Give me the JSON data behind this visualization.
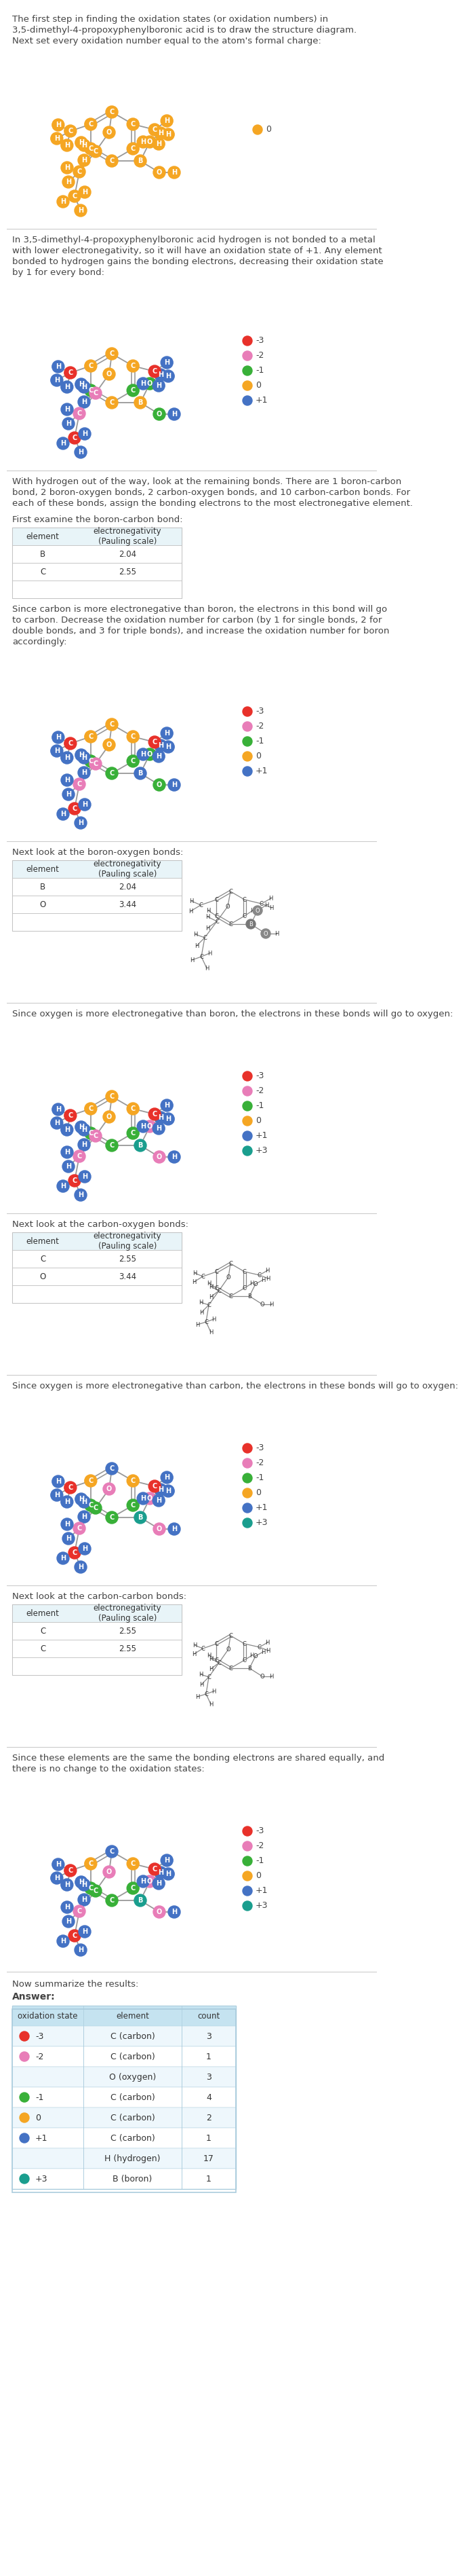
{
  "bg_color": "#ffffff",
  "text_color": "#444444",
  "bond_color": "#999999",
  "ox_colors": {
    "-3": "#e8312a",
    "-2": "#e87db8",
    "-1": "#38b038",
    "0": "#f5a623",
    "+1": "#4472c4",
    "+2": "#8b008b",
    "+3": "#1a9e8e"
  },
  "sections": [
    {
      "text": "The first step in finding the oxidation states (or oxidation numbers) in\n3,5-dimethyl-4-propoxyphenylboronic acid is to draw the structure diagram.\nNext set every oxidation number equal to the atom's formal charge:",
      "mol_colors": "all0",
      "legend": [
        "0"
      ]
    },
    {
      "sep": true,
      "text": "In 3,5-dimethyl-4-propoxyphenylboronic acid hydrogen is not bonded to a metal\nwith lower electronegativity, so it will have an oxidation state of +1. Any element\nbonded to hydrogen gains the bonding electrons, decreasing their oxidation state\nby 1 for every bond:",
      "mol_colors": "after_H",
      "legend": [
        "-3",
        "-2",
        "-1",
        "0",
        "+1"
      ]
    },
    {
      "sep": true,
      "text": "With hydrogen out of the way, look at the remaining bonds. There are 1 boron-carbon\nbond, 2 boron-oxygen bonds, 2 carbon-oxygen bonds, and 10 carbon-carbon bonds. For\neach of these bonds, assign the bonding electrons to the most electronegative element."
    },
    {
      "subsection": "boron_carbon",
      "header": "First examine the boron-carbon bond:",
      "table": [
        [
          "element",
          "electronegativity\n(Pauling scale)"
        ],
        [
          "B",
          "2.04"
        ],
        [
          "C",
          "2.55"
        ],
        [
          "",
          ""
        ]
      ],
      "desc": "Since carbon is more electronegative than boron, the electrons in this bond will go\nto carbon. Decrease the oxidation number for carbon (by 1 for single bonds, 2 for\ndouble bonds, and 3 for triple bonds), and increase the oxidation number for boron\naccordingly:",
      "mol_colors": "after_BC",
      "legend": [
        "-3",
        "-2",
        "-1",
        "0",
        "+1"
      ]
    },
    {
      "sep": true,
      "subsection": "boron_oxygen",
      "header": "Next look at the boron-oxygen bonds:",
      "table": [
        [
          "element",
          "electronegativity\n(Pauling scale)"
        ],
        [
          "B",
          "2.04"
        ],
        [
          "O",
          "3.44"
        ],
        [
          "",
          ""
        ]
      ],
      "has_sketch": true,
      "desc": "Since oxygen is more electronegative than boron, the electrons in these bonds will go to oxygen:",
      "mol_colors": "after_BO",
      "legend": [
        "-3",
        "-2",
        "-1",
        "0",
        "+1",
        "+3"
      ]
    },
    {
      "sep": true,
      "subsection": "carbon_oxygen",
      "header": "Next look at the carbon-oxygen bonds:",
      "table": [
        [
          "element",
          "electronegativity\n(Pauling scale)"
        ],
        [
          "C",
          "2.55"
        ],
        [
          "O",
          "3.44"
        ],
        [
          "",
          ""
        ]
      ],
      "has_sketch": true,
      "desc": "Since oxygen is more electronegative than carbon, the electrons in these bonds will go to oxygen:",
      "mol_colors": "after_CO",
      "legend": [
        "-3",
        "-2",
        "-1",
        "0",
        "+1",
        "+3"
      ]
    },
    {
      "sep": true,
      "subsection": "carbon_carbon",
      "header": "Next look at the carbon-carbon bonds:",
      "table": [
        [
          "element",
          "electronegativity\n(Pauling scale)"
        ],
        [
          "C",
          "2.55"
        ],
        [
          "C",
          "2.55"
        ],
        [
          "",
          ""
        ]
      ],
      "has_sketch": true,
      "desc": "Since these elements are the same the bonding electrons are shared equally, and\nthere is no change to the oxidation states:",
      "mol_colors": "after_CC",
      "legend": [
        "-3",
        "-2",
        "-1",
        "0",
        "+1",
        "+3"
      ]
    }
  ],
  "summary_text": "Now summarize the results:",
  "answer_label": "Answer:",
  "summary_headers": [
    "oxidation state",
    "element",
    "count"
  ],
  "summary_rows": [
    [
      "-3",
      "C (carbon)",
      "3"
    ],
    [
      "-2",
      "C (carbon)",
      "1"
    ],
    [
      "",
      "O (oxygen)",
      "3"
    ],
    [
      "-1",
      "C (carbon)",
      "4"
    ],
    [
      "0",
      "C (carbon)",
      "2"
    ],
    [
      "+1",
      "C (carbon)",
      "1"
    ],
    [
      "",
      "H (hydrogen)",
      "17"
    ],
    [
      "+3",
      "B (boron)",
      "1"
    ]
  ],
  "summary_dot_rows": [
    "-3",
    "-2",
    "",
    "-1",
    "0",
    "+1",
    "",
    "+3"
  ]
}
